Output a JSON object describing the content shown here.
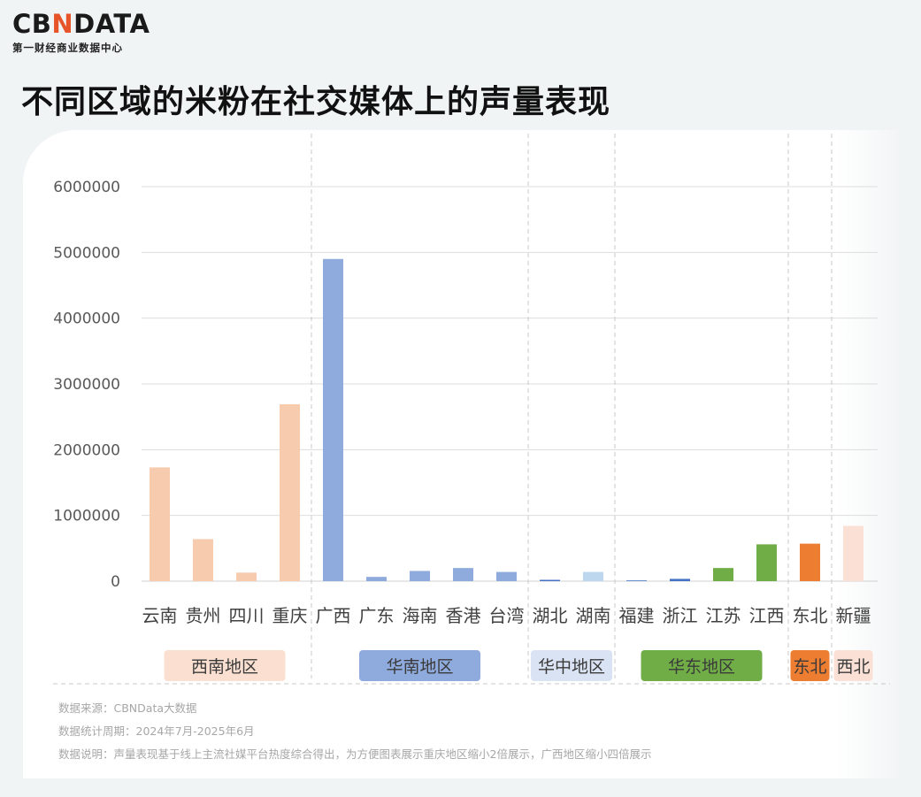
{
  "brand": {
    "logo_text": "CBNDATA",
    "logo_sub": "第一财经商业数据中心"
  },
  "title": "不同区域的米粉在社交媒体上的声量表现",
  "notes": [
    "数据来源：CBNData大数据",
    "数据统计周期：2024年7月-2025年6月",
    "数据说明：声量表现基于线上主流社媒平台热度综合得出，为方便图表展示重庆地区缩小2倍展示，广西地区缩小四倍展示"
  ],
  "chart_data": {
    "type": "bar",
    "categories": [
      "云南",
      "贵州",
      "四川",
      "重庆",
      "广西",
      "广东",
      "海南",
      "香港",
      "台湾",
      "湖北",
      "湖南",
      "福建",
      "浙江",
      "江苏",
      "江西",
      "东北",
      "新疆"
    ],
    "values": [
      1730000,
      640000,
      130000,
      2690000,
      4900000,
      65000,
      155000,
      200000,
      140000,
      12000,
      140000,
      0,
      35000,
      200000,
      560000,
      570000,
      840000
    ],
    "bar_colors": [
      "#f7cbad",
      "#f7cbad",
      "#f7cbad",
      "#f7cbad",
      "#8faadc",
      "#8faadc",
      "#8faadc",
      "#8faadc",
      "#8faadc",
      "#4472c4",
      "#bdd7ee",
      "#4472c4",
      "#4472c4",
      "#70ad47",
      "#70ad47",
      "#ed7d31",
      "#fbe0d6"
    ],
    "ylim": [
      0,
      6000000
    ],
    "yticks": [
      "0",
      "1000000",
      "2000000",
      "3000000",
      "4000000",
      "5000000",
      "6000000"
    ],
    "grid": true,
    "regions": [
      {
        "label": "西南地区",
        "start": 0,
        "end": 3,
        "color": "#fbe0d1"
      },
      {
        "label": "华南地区",
        "start": 4,
        "end": 8,
        "color": "#8faadc"
      },
      {
        "label": "华中地区",
        "start": 9,
        "end": 10,
        "color": "#dae3f3"
      },
      {
        "label": "华东地区",
        "start": 11,
        "end": 14,
        "color": "#70ad47"
      },
      {
        "label": "东北",
        "start": 15,
        "end": 15,
        "color": "#ed7d31"
      },
      {
        "label": "西北",
        "start": 16,
        "end": 16,
        "color": "#fbe0d6"
      }
    ]
  }
}
